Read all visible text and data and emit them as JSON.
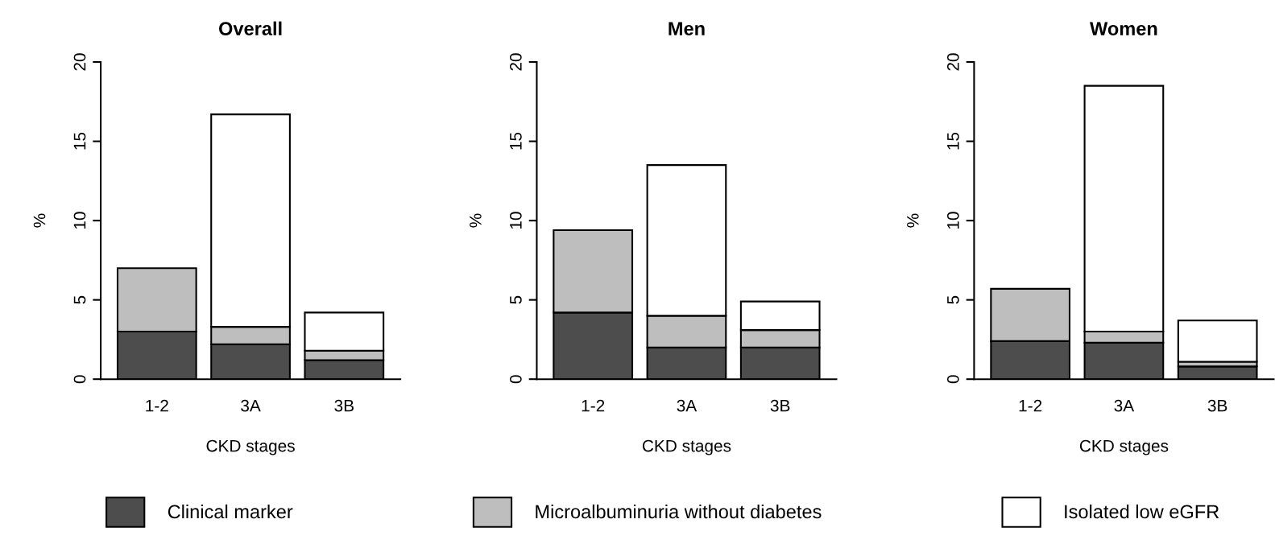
{
  "chart_data": [
    {
      "type": "bar",
      "title": "Overall",
      "xlabel": "CKD stages",
      "ylabel": "%",
      "categories": [
        "1-2",
        "3A",
        "3B"
      ],
      "stacked": true,
      "ylim": [
        0,
        20
      ],
      "yticks": [
        0,
        5,
        10,
        15,
        20
      ],
      "legend": "bottom",
      "series": [
        {
          "name": "Clinical marker",
          "color": "#4d4d4d",
          "values": [
            3.0,
            2.2,
            1.2
          ]
        },
        {
          "name": "Microalbuminuria without diabetes",
          "color": "#bebebe",
          "values": [
            4.0,
            1.1,
            0.6
          ]
        },
        {
          "name": "Isolated low eGFR",
          "color": "#ffffff",
          "values": [
            null,
            13.4,
            2.4
          ]
        }
      ]
    },
    {
      "type": "bar",
      "title": "Men",
      "xlabel": "CKD stages",
      "ylabel": "%",
      "categories": [
        "1-2",
        "3A",
        "3B"
      ],
      "stacked": true,
      "ylim": [
        0,
        20
      ],
      "yticks": [
        0,
        5,
        10,
        15,
        20
      ],
      "series": [
        {
          "color": "#4d4d4d",
          "values": [
            4.2,
            2.0,
            2.0
          ]
        },
        {
          "color": "#bebebe",
          "values": [
            5.2,
            2.0,
            1.1
          ]
        },
        {
          "color": "#ffffff",
          "values": [
            null,
            9.5,
            1.8
          ]
        }
      ]
    },
    {
      "type": "bar",
      "title": "Women",
      "xlabel": "CKD stages",
      "ylabel": "%",
      "categories": [
        "1-2",
        "3A",
        "3B"
      ],
      "stacked": true,
      "ylim": [
        0,
        20
      ],
      "yticks": [
        0,
        5,
        10,
        15,
        20
      ],
      "series": [
        {
          "color": "#4d4d4d",
          "values": [
            2.4,
            2.3,
            0.8
          ]
        },
        {
          "color": "#bebebe",
          "values": [
            3.3,
            0.7,
            0.3
          ]
        },
        {
          "color": "#ffffff",
          "values": [
            null,
            15.5,
            2.6
          ]
        }
      ]
    }
  ]
}
